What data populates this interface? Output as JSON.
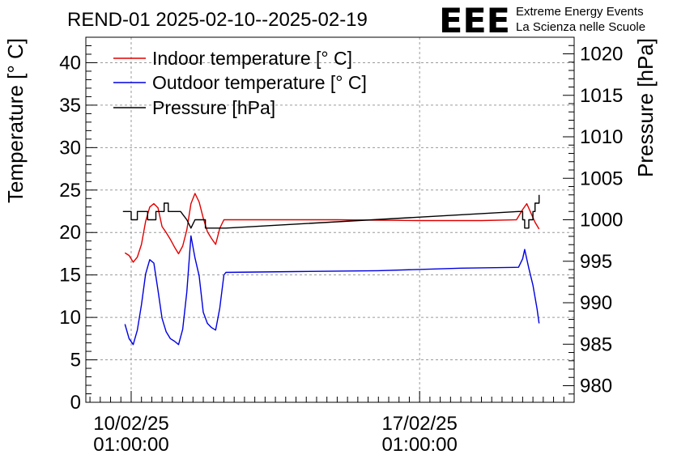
{
  "chart_data": {
    "type": "line",
    "title": "REND-01 2025-02-10--2025-02-19",
    "ylabel_left": "Temperature [° C]",
    "ylabel_right": "Pressure [hPa]",
    "ylim_left": [
      0,
      43
    ],
    "ylim_right": [
      978,
      1022
    ],
    "left_ticks": [
      "0",
      "5",
      "10",
      "15",
      "20",
      "25",
      "30",
      "35",
      "40"
    ],
    "right_ticks": [
      "980",
      "985",
      "990",
      "995",
      "1000",
      "1005",
      "1010",
      "1015",
      "1020"
    ],
    "x_ticks": [
      {
        "value": 1.0,
        "date": "10/02/25",
        "time": "01:00:00"
      },
      {
        "value": 8.0,
        "date": "17/02/25",
        "time": "01:00:00"
      }
    ],
    "xlim_days": [
      -0.1,
      11.75
    ],
    "grid": true,
    "legend_position": "top-left",
    "series": [
      {
        "name": "Indoor temperature [° C]",
        "axis": "left",
        "color": "#e00000",
        "points": [
          [
            0.85,
            17.6
          ],
          [
            0.95,
            17.3
          ],
          [
            1.05,
            16.5
          ],
          [
            1.15,
            17.1
          ],
          [
            1.25,
            18.6
          ],
          [
            1.35,
            21.3
          ],
          [
            1.45,
            23.0
          ],
          [
            1.55,
            23.4
          ],
          [
            1.65,
            22.9
          ],
          [
            1.75,
            20.7
          ],
          [
            1.85,
            20.0
          ],
          [
            1.95,
            19.2
          ],
          [
            2.05,
            18.3
          ],
          [
            2.15,
            17.5
          ],
          [
            2.25,
            18.4
          ],
          [
            2.35,
            20.3
          ],
          [
            2.45,
            23.4
          ],
          [
            2.55,
            24.6
          ],
          [
            2.65,
            23.6
          ],
          [
            2.75,
            21.7
          ],
          [
            2.85,
            20.1
          ],
          [
            2.95,
            19.3
          ],
          [
            3.05,
            18.6
          ],
          [
            3.15,
            20.5
          ],
          [
            3.25,
            21.5
          ],
          [
            5.0,
            21.5
          ],
          [
            6.0,
            21.5
          ],
          [
            8.0,
            21.4
          ],
          [
            9.5,
            21.4
          ],
          [
            10.35,
            21.5
          ],
          [
            10.5,
            22.7
          ],
          [
            10.6,
            23.4
          ],
          [
            10.7,
            22.3
          ],
          [
            10.8,
            21.2
          ],
          [
            10.9,
            20.4
          ]
        ]
      },
      {
        "name": "Outdoor temperature [° C]",
        "axis": "left",
        "color": "#0000e0",
        "points": [
          [
            0.85,
            9.2
          ],
          [
            0.95,
            7.5
          ],
          [
            1.05,
            6.8
          ],
          [
            1.15,
            8.5
          ],
          [
            1.25,
            11.5
          ],
          [
            1.35,
            15.1
          ],
          [
            1.45,
            16.8
          ],
          [
            1.55,
            16.4
          ],
          [
            1.65,
            13.2
          ],
          [
            1.75,
            9.9
          ],
          [
            1.85,
            8.3
          ],
          [
            1.95,
            7.5
          ],
          [
            2.05,
            7.2
          ],
          [
            2.15,
            6.8
          ],
          [
            2.25,
            8.6
          ],
          [
            2.35,
            13.0
          ],
          [
            2.45,
            19.6
          ],
          [
            2.55,
            17.0
          ],
          [
            2.65,
            14.9
          ],
          [
            2.75,
            10.6
          ],
          [
            2.85,
            9.3
          ],
          [
            2.95,
            8.8
          ],
          [
            3.05,
            8.5
          ],
          [
            3.15,
            11.1
          ],
          [
            3.25,
            15.0
          ],
          [
            3.3,
            15.3
          ],
          [
            5.0,
            15.4
          ],
          [
            7.0,
            15.5
          ],
          [
            9.0,
            15.8
          ],
          [
            10.4,
            15.9
          ],
          [
            10.5,
            16.9
          ],
          [
            10.55,
            18.0
          ],
          [
            10.65,
            15.8
          ],
          [
            10.75,
            13.8
          ],
          [
            10.85,
            11.0
          ],
          [
            10.9,
            9.3
          ]
        ]
      },
      {
        "name": "Pressure [hPa]",
        "axis": "right",
        "color": "#000000",
        "points": [
          [
            0.8,
            1001.0
          ],
          [
            1.0,
            1001.0
          ],
          [
            1.0,
            1000.0
          ],
          [
            1.15,
            1000.0
          ],
          [
            1.15,
            1001.0
          ],
          [
            1.3,
            1001.0
          ],
          [
            1.4,
            1001.0
          ],
          [
            1.4,
            1000.0
          ],
          [
            1.6,
            1000.0
          ],
          [
            1.6,
            1001.0
          ],
          [
            1.8,
            1001.0
          ],
          [
            1.8,
            1002.0
          ],
          [
            1.9,
            1002.0
          ],
          [
            1.9,
            1001.0
          ],
          [
            2.2,
            1001.0
          ],
          [
            2.35,
            1000.0
          ],
          [
            2.45,
            999.0
          ],
          [
            2.55,
            1000.0
          ],
          [
            2.8,
            1000.0
          ],
          [
            2.8,
            999.0
          ],
          [
            3.2,
            999.0
          ],
          [
            3.3,
            999.0
          ],
          [
            10.4,
            1001.0
          ],
          [
            10.5,
            1001.0
          ],
          [
            10.5,
            1000.0
          ],
          [
            10.55,
            1000.0
          ],
          [
            10.55,
            999.0
          ],
          [
            10.65,
            999.0
          ],
          [
            10.65,
            1000.0
          ],
          [
            10.75,
            1000.0
          ],
          [
            10.75,
            1001.0
          ],
          [
            10.8,
            1001.0
          ],
          [
            10.8,
            1002.0
          ],
          [
            10.9,
            1002.0
          ],
          [
            10.9,
            1003.0
          ]
        ]
      }
    ]
  },
  "logo": {
    "mark": "EEE",
    "line1": "Extreme Energy Events",
    "line2": "La Scienza nelle Scuole",
    "color": "#0000ee"
  }
}
